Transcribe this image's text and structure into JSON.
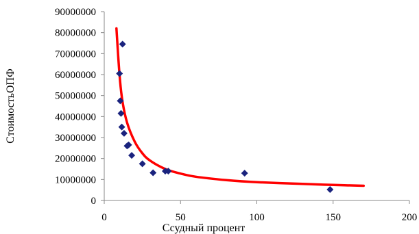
{
  "chart_data": {
    "type": "scatter",
    "xlabel": "Ссудный процент",
    "ylabel": "СтоимостьОПФ",
    "xlim": [
      0,
      200
    ],
    "ylim": [
      0,
      90000000
    ],
    "x_ticks": [
      "0",
      "50",
      "100",
      "150",
      "200"
    ],
    "y_ticks": [
      "0",
      "10000000",
      "20000000",
      "30000000",
      "40000000",
      "50000000",
      "60000000",
      "70000000",
      "80000000",
      "90000000"
    ],
    "grid": false,
    "legend": "none",
    "series": [
      {
        "kind": "points",
        "marker": "diamond",
        "color": "#1a237e",
        "x": [
          10,
          10.5,
          11,
          11.5,
          12,
          13,
          15,
          16,
          18,
          25,
          32,
          40,
          42,
          92,
          148
        ],
        "y": [
          60500000,
          47500000,
          41500000,
          35000000,
          74500000,
          32000000,
          26000000,
          26500000,
          21500000,
          17500000,
          13200000,
          14000000,
          14000000,
          13000000,
          5200000
        ]
      },
      {
        "kind": "trendline",
        "color": "#ff0000",
        "x": [
          8,
          10,
          12,
          15,
          20,
          25,
          30,
          40,
          50,
          60,
          80,
          100,
          130,
          150,
          170
        ],
        "y": [
          82000000,
          60000000,
          47000000,
          37000000,
          28000000,
          22500000,
          19000000,
          15000000,
          12800000,
          11300000,
          9700000,
          8700000,
          7900000,
          7400000,
          7000000
        ]
      }
    ]
  }
}
